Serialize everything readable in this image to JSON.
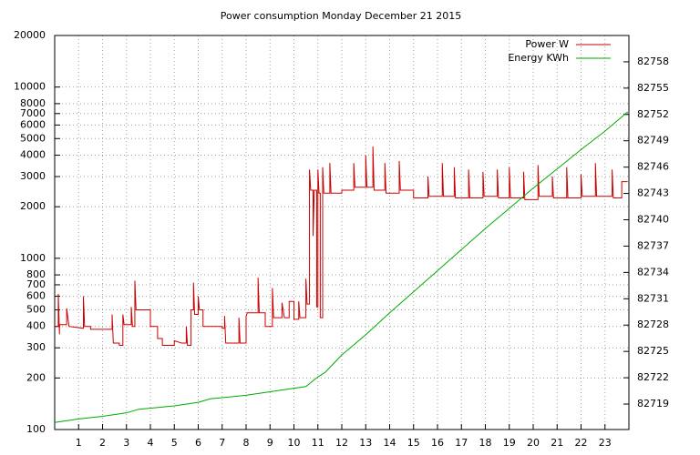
{
  "chart_data": {
    "type": "line",
    "title": "Power consumption Monday December 21 2015",
    "legend": "top-right",
    "grid": true,
    "log_y": true,
    "xlim": [
      0,
      24
    ],
    "xticks": [
      1,
      2,
      3,
      4,
      5,
      6,
      7,
      8,
      9,
      10,
      11,
      12,
      13,
      14,
      15,
      16,
      17,
      18,
      19,
      20,
      21,
      22,
      23
    ],
    "ylim": [
      100,
      20000
    ],
    "yticks": [
      100,
      200,
      300,
      400,
      500,
      600,
      700,
      800,
      1000,
      2000,
      3000,
      4000,
      5000,
      6000,
      7000,
      8000,
      10000,
      20000
    ],
    "y2lim": [
      82716.1,
      82761.0
    ],
    "y2ticks": [
      82719,
      82722,
      82725,
      82728,
      82731,
      82734,
      82737,
      82740,
      82743,
      82746,
      82749,
      82752,
      82755,
      82758
    ],
    "series": [
      {
        "name": "Power W",
        "color": "#cc0000",
        "x": [
          0,
          0.15,
          0.15,
          0.2,
          0.2,
          0.5,
          0.5,
          0.6,
          1.2,
          1.2,
          1.25,
          1.5,
          1.5,
          2.4,
          2.4,
          2.45,
          2.7,
          2.7,
          2.85,
          2.85,
          2.9,
          3.2,
          3.2,
          3.25,
          3.35,
          3.35,
          3.4,
          4,
          4,
          4.3,
          4.3,
          4.5,
          4.5,
          5,
          5,
          5.3,
          5.5,
          5.5,
          5.55,
          5.7,
          5.7,
          5.8,
          5.8,
          5.85,
          6,
          6,
          6.05,
          6.2,
          6.2,
          7,
          7,
          7.1,
          7.1,
          7.15,
          7.7,
          7.7,
          7.75,
          8,
          8,
          8.05,
          8.5,
          8.5,
          8.55,
          8.8,
          8.8,
          9.1,
          9.1,
          9.15,
          9.5,
          9.5,
          9.6,
          9.8,
          9.8,
          10,
          10,
          10.2,
          10.2,
          10.25,
          10.5,
          10.5,
          10.55,
          10.65,
          10.65,
          10.7,
          10.8,
          10.8,
          10.85,
          10.95,
          10.95,
          11,
          11,
          11.05,
          11.1,
          11.1,
          11.2,
          11.2,
          11.25,
          11.5,
          11.5,
          11.55,
          12,
          12,
          12.5,
          12.5,
          12.55,
          13,
          13,
          13.05,
          13.3,
          13.3,
          13.35,
          13.8,
          13.8,
          13.85,
          14.4,
          14.4,
          14.45,
          15,
          15,
          15.6,
          15.6,
          15.65,
          16.2,
          16.2,
          16.25,
          16.7,
          16.7,
          16.75,
          17.3,
          17.3,
          17.35,
          17.9,
          17.9,
          17.95,
          18.5,
          18.5,
          18.55,
          19,
          19,
          19.05,
          19.6,
          19.6,
          19.65,
          20.2,
          20.2,
          20.25,
          20.8,
          20.8,
          20.85,
          21.4,
          21.4,
          21.45,
          22,
          22,
          22.05,
          22.6,
          22.6,
          22.65,
          23.3,
          23.3,
          23.35,
          23.7,
          23.7,
          23.95
        ],
        "values": [
          400,
          400,
          620,
          360,
          410,
          410,
          510,
          400,
          390,
          600,
          400,
          400,
          385,
          385,
          470,
          320,
          320,
          310,
          310,
          470,
          410,
          410,
          520,
          400,
          400,
          740,
          500,
          500,
          400,
          400,
          340,
          340,
          310,
          310,
          330,
          320,
          320,
          400,
          310,
          310,
          500,
          500,
          720,
          470,
          470,
          600,
          500,
          500,
          400,
          400,
          390,
          390,
          460,
          320,
          320,
          450,
          320,
          320,
          460,
          480,
          480,
          770,
          480,
          480,
          400,
          400,
          670,
          450,
          450,
          550,
          450,
          450,
          560,
          560,
          440,
          440,
          560,
          450,
          450,
          760,
          540,
          540,
          3300,
          2500,
          2500,
          1350,
          2500,
          2500,
          520,
          520,
          3300,
          2400,
          2400,
          450,
          450,
          3400,
          2400,
          2400,
          3600,
          2400,
          2400,
          2500,
          2500,
          3600,
          2600,
          2600,
          4000,
          2600,
          2600,
          4500,
          2500,
          2500,
          3600,
          2400,
          2400,
          3700,
          2500,
          2500,
          2250,
          2250,
          3000,
          2300,
          2300,
          3600,
          2300,
          2300,
          3400,
          2250,
          2250,
          3300,
          2250,
          2250,
          3200,
          2300,
          2300,
          3300,
          2250,
          2250,
          3400,
          2250,
          2250,
          3200,
          2200,
          2200,
          3500,
          2300,
          2300,
          3000,
          2250,
          2250,
          3400,
          2250,
          2250,
          3100,
          2300,
          2300,
          3600,
          2300,
          2300,
          3300,
          2250,
          2250,
          2800,
          2800
        ]
      },
      {
        "name": "Energy KWh",
        "color": "#00aa00",
        "axis": "y2",
        "x": [
          0,
          1,
          2,
          3,
          3.5,
          5,
          6,
          6.5,
          8,
          9,
          10.5,
          11,
          11.3,
          12,
          13,
          14,
          15,
          16,
          17,
          18,
          19,
          20,
          21,
          22,
          23,
          23.95
        ],
        "values": [
          82716.9,
          82717.3,
          82717.6,
          82718.0,
          82718.4,
          82718.8,
          82719.2,
          82719.6,
          82720.0,
          82720.4,
          82721.0,
          82722.1,
          82722.6,
          82724.6,
          82726.9,
          82729.4,
          82731.8,
          82734.2,
          82736.6,
          82739.0,
          82741.3,
          82743.6,
          82745.8,
          82748.0,
          82750.1,
          82752.3
        ]
      }
    ]
  }
}
